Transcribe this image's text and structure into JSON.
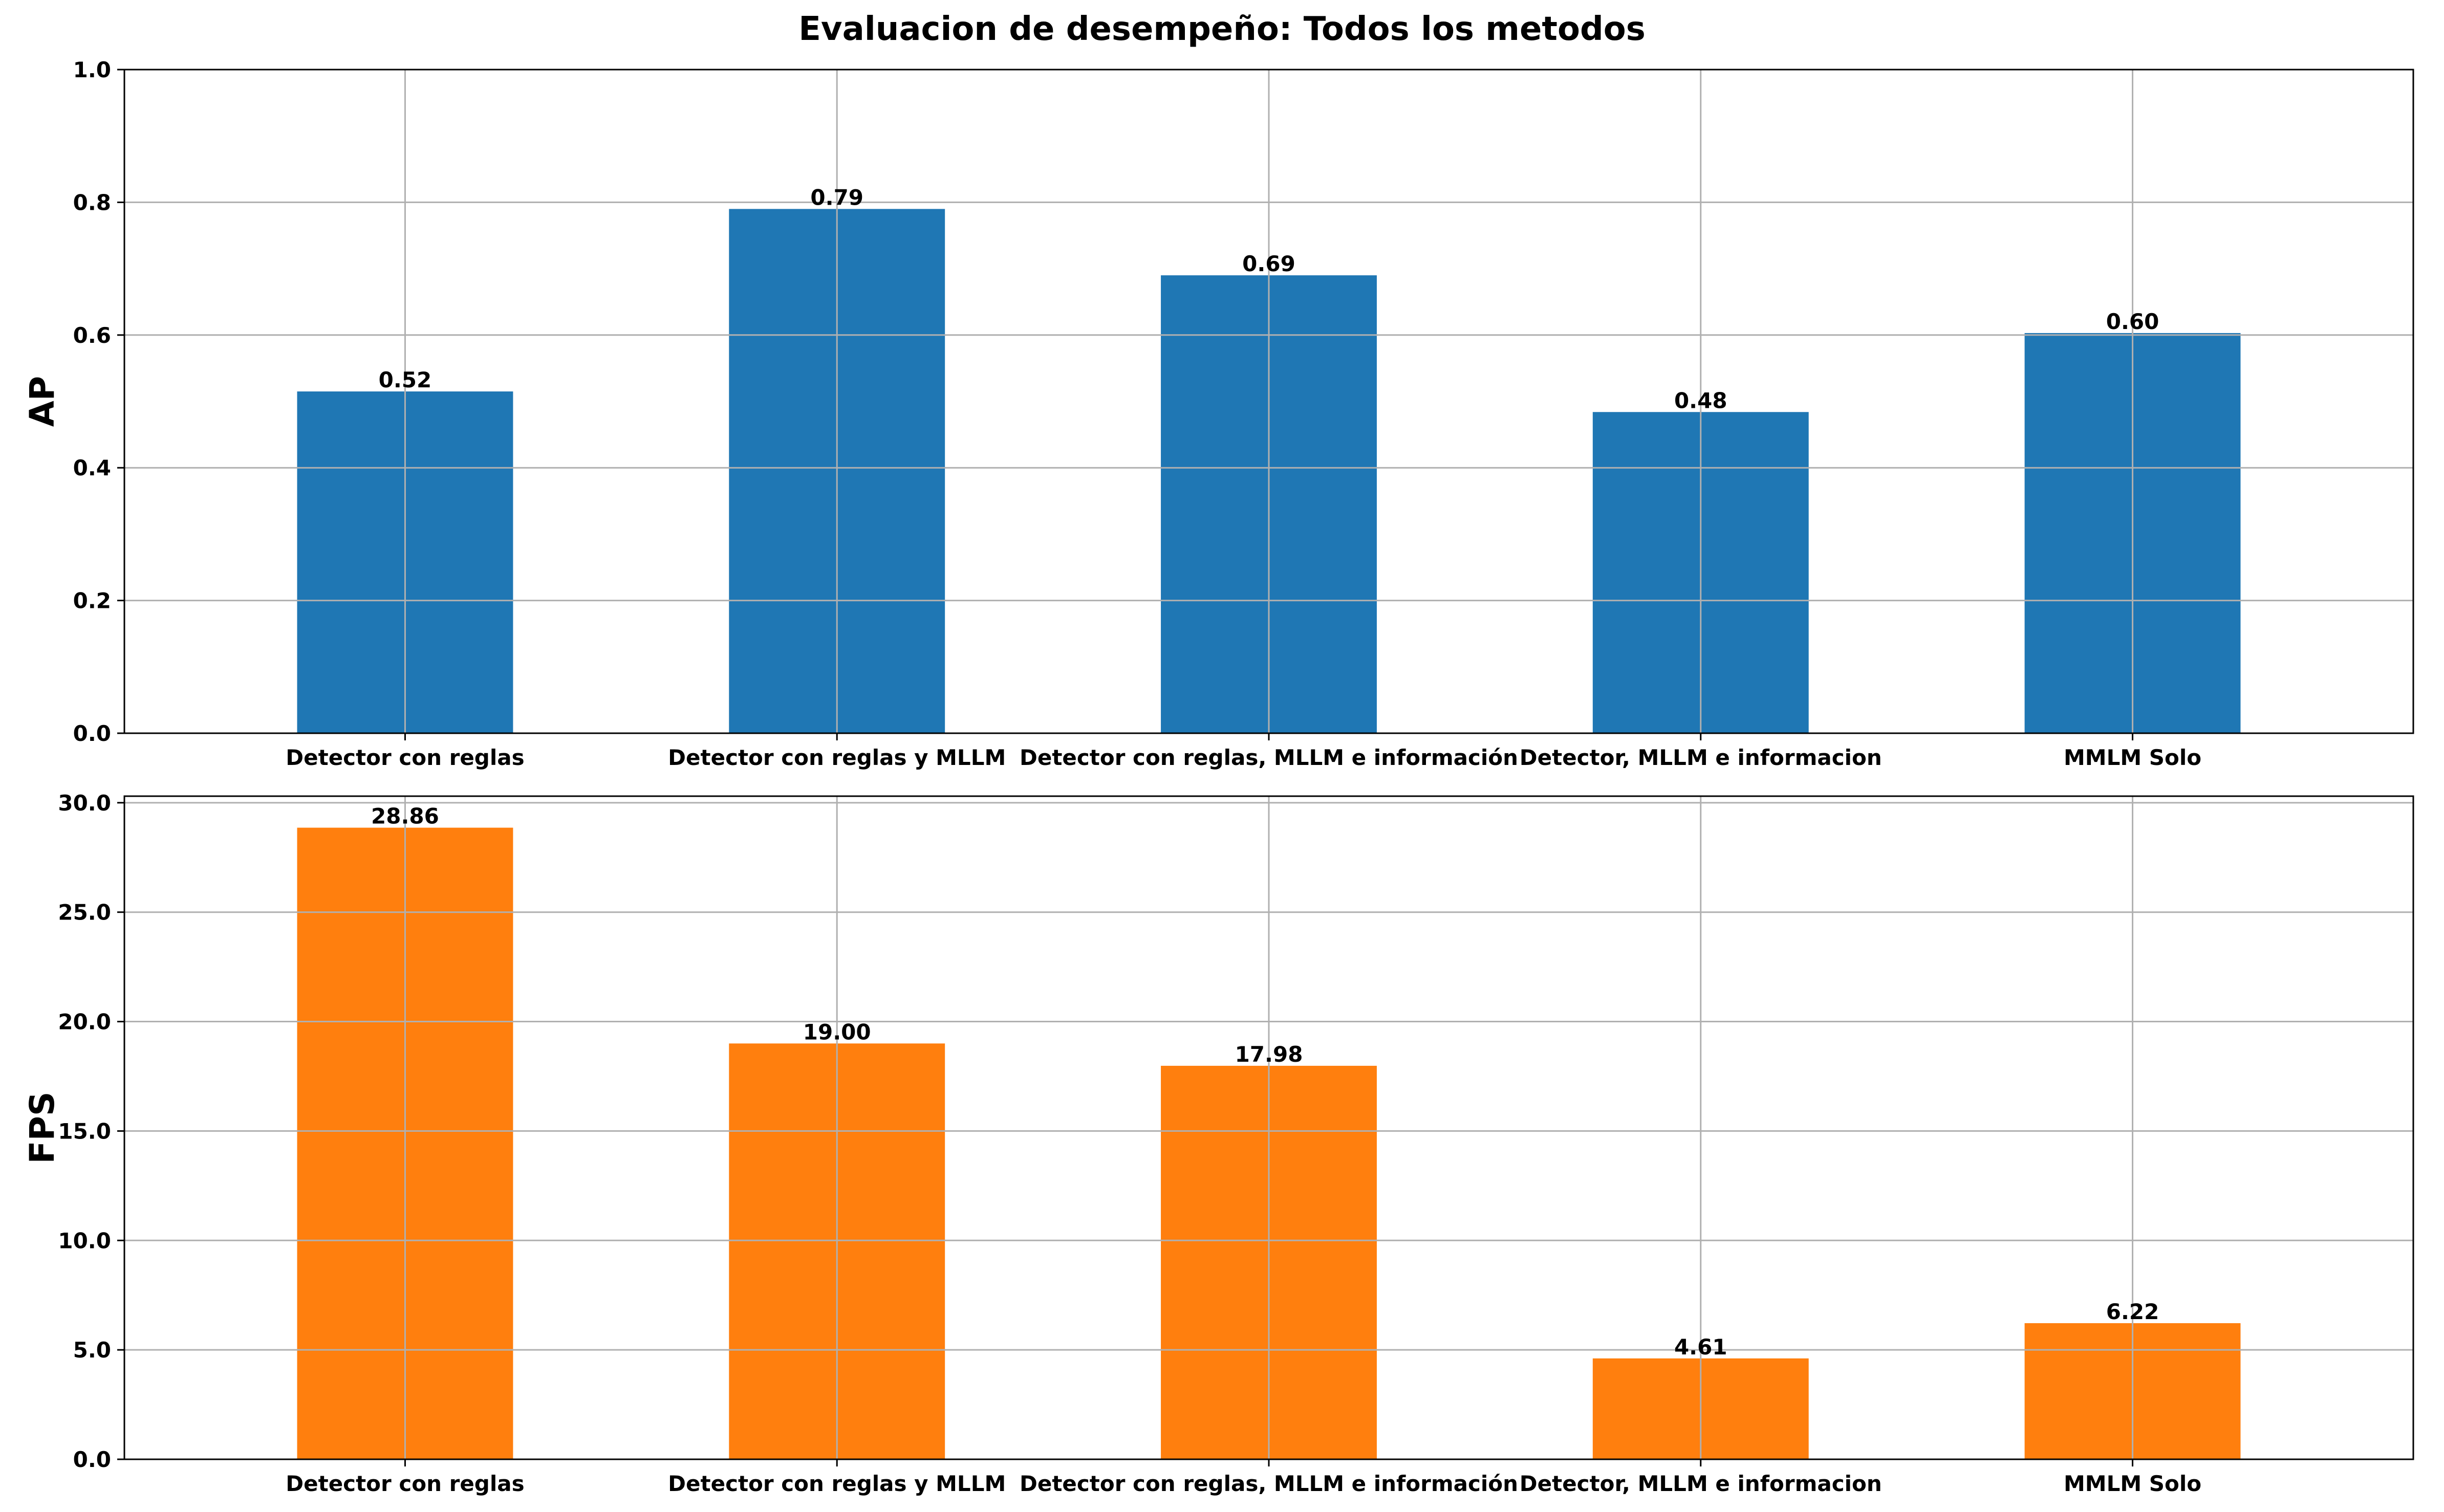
{
  "title": "Evaluacion de desempeño: Todos los metodos",
  "chart_data": [
    {
      "type": "bar",
      "title": "",
      "xlabel": "",
      "ylabel": "AP",
      "categories": [
        "Detector con reglas",
        "Detector con reglas y MLLM",
        "Detector con reglas, MLLM e información",
        "Detector, MLLM e informacion",
        "MMLM Solo"
      ],
      "values": [
        0.515,
        0.79,
        0.69,
        0.484,
        0.603
      ],
      "data_labels": [
        "0.52",
        "0.79",
        "0.69",
        "0.48",
        "0.60"
      ],
      "ylim": [
        0,
        1.0
      ],
      "yticks": [
        "0.0",
        "0.2",
        "0.4",
        "0.6",
        "0.8",
        "1.0"
      ],
      "color": "#1f77b4",
      "grid": true
    },
    {
      "type": "bar",
      "title": "",
      "xlabel": "",
      "ylabel": "FPS",
      "categories": [
        "Detector con reglas",
        "Detector con reglas y MLLM",
        "Detector con reglas, MLLM e información",
        "Detector, MLLM e informacion",
        "MMLM Solo"
      ],
      "values": [
        28.86,
        19.0,
        17.98,
        4.61,
        6.22
      ],
      "data_labels": [
        "28.86",
        "19.00",
        "17.98",
        "4.61",
        "6.22"
      ],
      "ylim": [
        0,
        30.3
      ],
      "yticks": [
        "0.0",
        "5.0",
        "10.0",
        "15.0",
        "20.0",
        "25.0",
        "30.0"
      ],
      "color": "#ff7f0e",
      "grid": true
    }
  ]
}
